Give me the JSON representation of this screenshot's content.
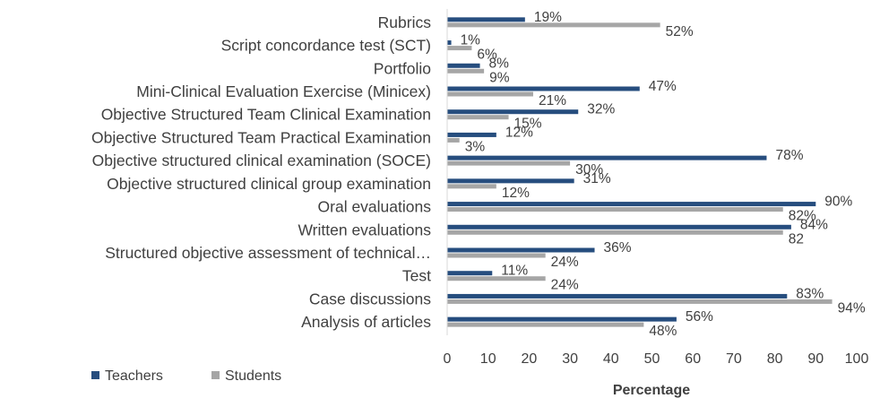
{
  "chart_data": {
    "type": "bar",
    "orientation": "horizontal",
    "title": "",
    "xlabel": "Percentage",
    "ylabel": "",
    "xlim": [
      0,
      100
    ],
    "x_ticks": [
      "0",
      "10",
      "20",
      "30",
      "40",
      "50",
      "60",
      "70",
      "80",
      "90",
      "100"
    ],
    "grid": false,
    "legend_position": "bottom-left",
    "categories": [
      "Rubrics",
      "Script concordance test (SCT)",
      "Portfolio",
      "Mini-Clinical Evaluation Exercise (Minicex)",
      "Objective Structured Team Clinical Examination",
      "Objective Structured Team Practical Examination",
      "Objective structured clinical examination (SOCE)",
      "Objective structured clinical group examination",
      "Oral evaluations",
      "Written evaluations",
      "Structured objective assessment of technical…",
      "Test",
      "Case discussions",
      "Analysis of articles"
    ],
    "series": [
      {
        "name": "Teachers",
        "color": "#264d7e",
        "values": [
          19,
          1,
          8,
          47,
          32,
          12,
          78,
          31,
          90,
          84,
          36,
          11,
          83,
          56
        ],
        "labels": [
          "19%",
          "1%",
          "8%",
          "47%",
          "32%",
          "12%",
          "78%",
          "31%",
          "90%",
          "84%",
          "36%",
          "11%",
          "83%",
          "56%"
        ]
      },
      {
        "name": "Students",
        "color": "#a6a6a6",
        "values": [
          52,
          6,
          9,
          21,
          15,
          3,
          30,
          12,
          82,
          82,
          24,
          24,
          94,
          48
        ],
        "labels": [
          "52%",
          "6%",
          "9%",
          "21%",
          "15%",
          "3%",
          "30%",
          "12%",
          "82%",
          "82",
          "24%",
          "24%",
          "94%",
          "48%"
        ]
      }
    ]
  }
}
